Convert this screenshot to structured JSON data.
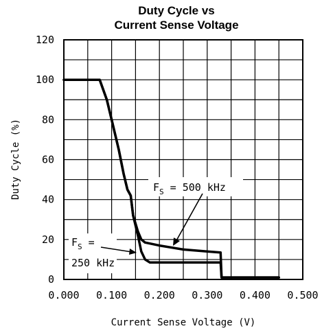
{
  "chart_data": {
    "type": "line",
    "title_line1": "Duty Cycle vs",
    "title_line2": "Current Sense Voltage",
    "xlabel": "Current Sense Voltage (V)",
    "ylabel": "Duty Cycle (%)",
    "xlim": [
      0,
      0.5
    ],
    "ylim": [
      0,
      120
    ],
    "x_ticks": [
      "0.000",
      "0.100",
      "0.200",
      "0.300",
      "0.400",
      "0.500"
    ],
    "y_ticks": [
      "0",
      "20",
      "40",
      "60",
      "80",
      "100",
      "120"
    ],
    "grid": true,
    "series": [
      {
        "name": "FS = 500 kHz",
        "points": [
          [
            0,
            100
          ],
          [
            0.075,
            100
          ],
          [
            0.09,
            90
          ],
          [
            0.1,
            80
          ],
          [
            0.115,
            65
          ],
          [
            0.125,
            53
          ],
          [
            0.133,
            45
          ],
          [
            0.14,
            42
          ],
          [
            0.145,
            32
          ],
          [
            0.155,
            24
          ],
          [
            0.162,
            20
          ],
          [
            0.17,
            18.5
          ],
          [
            0.2,
            17
          ],
          [
            0.25,
            15
          ],
          [
            0.3,
            14
          ],
          [
            0.328,
            13.5
          ],
          [
            0.33,
            1
          ],
          [
            0.45,
            1
          ]
        ]
      },
      {
        "name": "FS = 250 kHz",
        "points": [
          [
            0,
            100
          ],
          [
            0.075,
            100
          ],
          [
            0.09,
            90
          ],
          [
            0.1,
            80
          ],
          [
            0.115,
            65
          ],
          [
            0.125,
            53
          ],
          [
            0.133,
            45
          ],
          [
            0.14,
            42
          ],
          [
            0.145,
            32
          ],
          [
            0.155,
            22
          ],
          [
            0.162,
            14
          ],
          [
            0.17,
            10
          ],
          [
            0.18,
            8.5
          ],
          [
            0.25,
            8.5
          ],
          [
            0.328,
            8.5
          ],
          [
            0.33,
            1
          ],
          [
            0.45,
            1
          ]
        ]
      }
    ],
    "annotations": {
      "fs500": {
        "prefix": "F",
        "sub": "S",
        "value": " = 500 kHz"
      },
      "fs250": {
        "prefix": "F",
        "sub": "S",
        "eq": " =",
        "value": "250 kHz"
      }
    }
  }
}
